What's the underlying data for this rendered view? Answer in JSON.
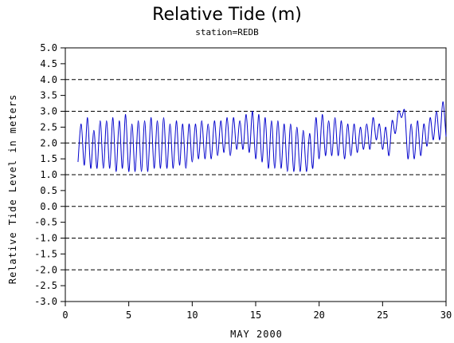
{
  "chart_data": {
    "type": "line",
    "title": "Relative Tide (m)",
    "subtitle": "station=REDB",
    "xlabel": "MAY 2000",
    "ylabel": "Relative Tide Level in meters",
    "xlim": [
      0,
      30
    ],
    "ylim": [
      -3,
      5
    ],
    "x_ticks": [
      0,
      5,
      10,
      15,
      20,
      25,
      30
    ],
    "y_ticks": [
      "5.0",
      "4.5",
      "4.0",
      "3.5",
      "3.0",
      "2.5",
      "2.0",
      "1.5",
      "1.0",
      "0.5",
      "0.0",
      "-0.5",
      "-1.0",
      "-1.5",
      "-2.0",
      "-2.5",
      "-3.0"
    ],
    "gridlines_y": [
      5,
      4,
      3,
      2,
      1,
      0,
      -1,
      -2,
      -3
    ],
    "grid": "horizontal dashed",
    "line_color": "#0000cc",
    "series": [
      {
        "x": [
          1.0,
          1.25,
          1.5,
          1.75,
          2.0,
          2.25,
          2.5,
          2.75,
          3.0,
          3.25,
          3.5,
          3.75,
          4.0,
          4.25,
          4.5,
          4.75,
          5.0,
          5.25,
          5.5,
          5.75,
          6.0,
          6.25,
          6.5,
          6.75,
          7.0,
          7.25,
          7.5,
          7.75,
          8.0,
          8.25,
          8.5,
          8.75,
          9.0,
          9.25,
          9.5,
          9.75,
          10.0,
          10.25,
          10.5,
          10.75,
          11.0,
          11.25,
          11.5,
          11.75,
          12.0,
          12.25,
          12.5,
          12.75,
          13.0,
          13.25,
          13.5,
          13.75,
          14.0,
          14.25,
          14.5,
          14.75,
          15.0,
          15.25,
          15.5,
          15.75,
          16.0,
          16.25,
          16.5,
          16.75,
          17.0,
          17.25,
          17.5,
          17.75,
          18.0,
          18.25,
          18.5,
          18.75,
          19.0,
          19.25,
          19.5,
          19.75,
          20.0,
          20.25,
          20.5,
          20.75,
          21.0,
          21.25,
          21.5,
          21.75,
          22.0,
          22.25,
          22.5,
          22.75,
          23.0,
          23.25,
          23.5,
          23.75,
          24.0,
          24.25,
          24.5,
          24.75,
          25.0,
          25.25,
          25.5,
          25.75,
          26.0,
          26.25,
          26.5,
          26.75,
          27.0,
          27.25,
          27.5,
          27.75,
          28.0,
          28.25,
          28.5,
          28.75,
          29.0,
          29.25,
          29.5,
          29.75,
          30.0
        ],
        "values": [
          1.4,
          2.6,
          1.3,
          2.8,
          1.2,
          2.4,
          1.2,
          2.7,
          1.2,
          2.7,
          1.2,
          2.8,
          1.1,
          2.7,
          1.2,
          2.9,
          1.1,
          2.6,
          1.1,
          2.7,
          1.1,
          2.7,
          1.1,
          2.8,
          1.2,
          2.7,
          1.2,
          2.8,
          1.2,
          2.6,
          1.2,
          2.7,
          1.3,
          2.6,
          1.2,
          2.6,
          1.4,
          2.6,
          1.5,
          2.7,
          1.5,
          2.6,
          1.5,
          2.7,
          1.6,
          2.7,
          1.7,
          2.8,
          1.6,
          2.8,
          1.8,
          2.7,
          1.8,
          2.9,
          1.7,
          3.0,
          1.5,
          2.9,
          1.4,
          2.8,
          1.2,
          2.7,
          1.2,
          2.7,
          1.2,
          2.6,
          1.1,
          2.6,
          1.1,
          2.5,
          1.1,
          2.4,
          1.1,
          2.3,
          1.2,
          2.8,
          1.5,
          2.9,
          1.6,
          2.7,
          1.6,
          2.8,
          1.6,
          2.7,
          1.5,
          2.6,
          1.6,
          2.6,
          1.7,
          2.5,
          1.8,
          2.6,
          1.8,
          2.8,
          2.1,
          2.6,
          1.8,
          2.5,
          1.6,
          2.7,
          2.3,
          3.0,
          2.8,
          3.0,
          1.5,
          2.6,
          1.5,
          2.7,
          1.6,
          2.6,
          1.9,
          2.8,
          2.1,
          3.0,
          2.1,
          3.3,
          2.2
        ]
      }
    ]
  }
}
